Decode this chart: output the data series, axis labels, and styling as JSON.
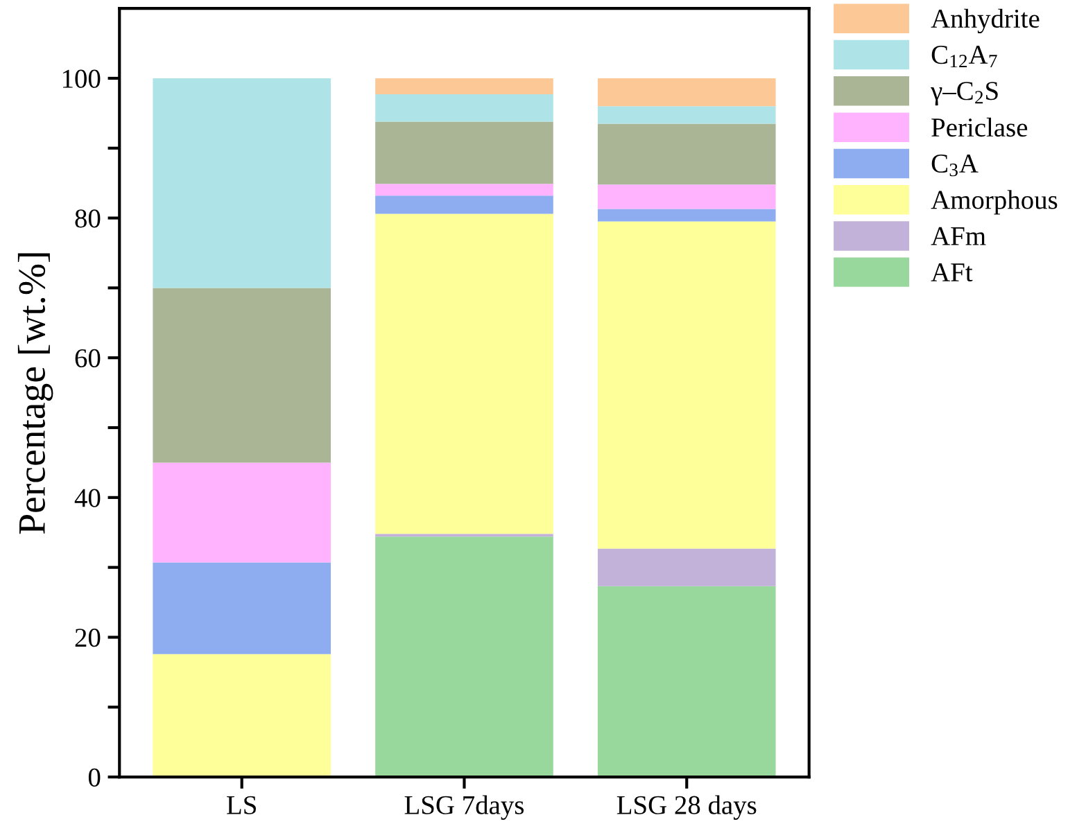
{
  "chart_data": {
    "type": "bar",
    "stacked": true,
    "ylabel": "Percentage [wt.%]",
    "categories": [
      "LS",
      "LSG 7days",
      "LSG 28 days"
    ],
    "series": [
      {
        "name": "AFt",
        "color": "#99d89c",
        "values": [
          null,
          34.4,
          27.3
        ]
      },
      {
        "name": "AFm",
        "color": "#c2b1d8",
        "values": [
          null,
          0.4,
          5.4
        ]
      },
      {
        "name": "Amorphous",
        "color": "#ffff99",
        "values": [
          17.6,
          45.8,
          46.8
        ]
      },
      {
        "name": "C$_{3}$A",
        "color": "#8eadf0",
        "values": [
          13.1,
          2.6,
          1.8
        ]
      },
      {
        "name": "Periclase",
        "color": "#ffb3ff",
        "values": [
          14.3,
          1.7,
          3.5
        ]
      },
      {
        "name": "γ–C$_{2}$S",
        "color": "#aab596",
        "values": [
          25.0,
          8.9,
          8.7
        ]
      },
      {
        "name": "C$_{12}$A$_{7}$",
        "color": "#aee4e8",
        "values": [
          30.0,
          3.9,
          2.5
        ]
      },
      {
        "name": "Anhydrite",
        "color": "#fcc896",
        "values": [
          null,
          2.3,
          4.0
        ]
      }
    ],
    "ylim": [
      0,
      110
    ],
    "yticks": [
      0,
      {
        "value": 10,
        "label": null
      },
      20,
      {
        "value": 30,
        "label": null
      },
      40,
      {
        "value": 50,
        "label": null
      },
      60,
      {
        "value": 70,
        "label": null
      },
      80,
      {
        "value": 90,
        "label": null
      },
      100
    ],
    "grid": false,
    "legend": "top right"
  }
}
